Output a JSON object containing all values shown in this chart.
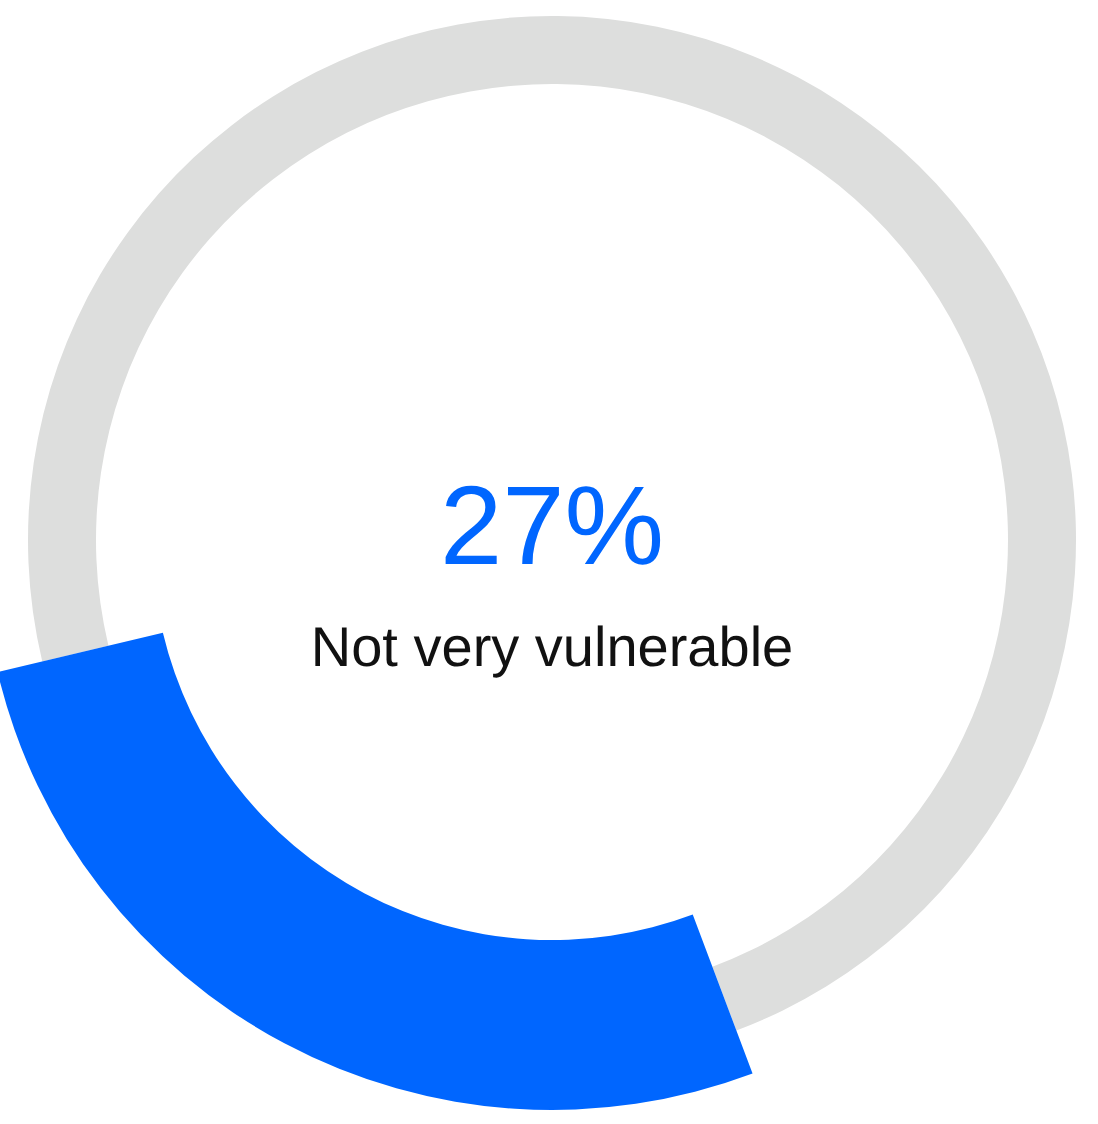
{
  "chart_data": {
    "type": "donut",
    "categories": [
      "Not very vulnerable",
      null
    ],
    "values": [
      27,
      73
    ],
    "colors": [
      "#0066ff",
      "#dddedd"
    ],
    "value_labels": [
      "27%",
      null
    ]
  }
}
